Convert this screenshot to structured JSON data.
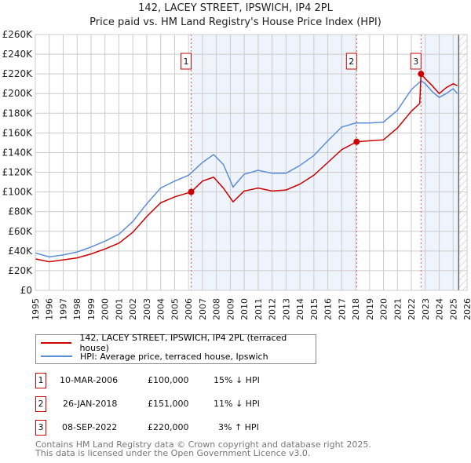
{
  "chart_data": {
    "type": "line",
    "title": "142, LACEY STREET, IPSWICH, IP4 2PL",
    "subtitle": "Price paid vs. HM Land Registry's House Price Index (HPI)",
    "xlim": [
      1995,
      2026
    ],
    "ylim": [
      0,
      260000
    ],
    "x_ticks": [
      "1995",
      "1996",
      "1997",
      "1998",
      "1999",
      "2000",
      "2001",
      "2002",
      "2003",
      "2004",
      "2005",
      "2006",
      "2007",
      "2008",
      "2009",
      "2010",
      "2011",
      "2012",
      "2013",
      "2014",
      "2015",
      "2016",
      "2017",
      "2018",
      "2019",
      "2020",
      "2021",
      "2022",
      "2023",
      "2024",
      "2025",
      "2026"
    ],
    "y_ticks": [
      "£0",
      "£20K",
      "£40K",
      "£60K",
      "£80K",
      "£100K",
      "£120K",
      "£140K",
      "£160K",
      "£180K",
      "£200K",
      "£220K",
      "£240K",
      "£260K"
    ],
    "grid": true,
    "series": [
      {
        "name": "142, LACEY STREET, IPSWICH, IP4 2PL (terraced house)",
        "color": "#cc0000",
        "x": [
          1995,
          1996,
          1997,
          1998,
          1999,
          2000,
          2001,
          2002,
          2003,
          2004,
          2005,
          2006.19,
          2007,
          2007.8,
          2008.5,
          2009.2,
          2010,
          2011,
          2012,
          2013,
          2014,
          2015,
          2016,
          2017,
          2018.07,
          2019,
          2020,
          2021,
          2022,
          2022.6,
          2022.69,
          2023,
          2023.5,
          2024,
          2024.5,
          2025,
          2025.3
        ],
        "y": [
          32000,
          29000,
          31000,
          33000,
          37000,
          42000,
          48000,
          59000,
          75000,
          89000,
          95000,
          100000,
          111000,
          115000,
          104000,
          90000,
          101000,
          104000,
          101000,
          102000,
          108000,
          117000,
          130000,
          143000,
          151000,
          152000,
          153000,
          165000,
          182000,
          190000,
          220000,
          215000,
          208000,
          200000,
          206000,
          210000,
          208000
        ]
      },
      {
        "name": "HPI: Average price, terraced house, Ipswich",
        "color": "#5b8ed6",
        "x": [
          1995,
          1996,
          1997,
          1998,
          1999,
          2000,
          2001,
          2002,
          2003,
          2004,
          2005,
          2006,
          2007,
          2007.8,
          2008.5,
          2009.2,
          2010,
          2011,
          2012,
          2013,
          2014,
          2015,
          2016,
          2017,
          2018,
          2019,
          2020,
          2021,
          2022,
          2022.7,
          2023,
          2023.5,
          2024,
          2024.5,
          2025,
          2025.3
        ],
        "y": [
          38000,
          34000,
          36000,
          39000,
          44000,
          50000,
          57000,
          70000,
          88000,
          104000,
          111000,
          117000,
          130000,
          138000,
          128000,
          105000,
          118000,
          122000,
          119000,
          119000,
          127000,
          137000,
          152000,
          166000,
          170000,
          170000,
          171000,
          183000,
          204000,
          213000,
          210000,
          202000,
          196000,
          200000,
          205000,
          200000
        ]
      }
    ],
    "sales": [
      {
        "label": "1",
        "x": 2006.19,
        "y": 100000
      },
      {
        "label": "2",
        "x": 2018.07,
        "y": 151000
      },
      {
        "label": "3",
        "x": 2022.69,
        "y": 220000
      }
    ],
    "shaded": [
      [
        2006.19,
        2018.07
      ],
      [
        2022.69,
        2025.4
      ]
    ],
    "hatched_from": 2025.4
  },
  "legend": {
    "red": "142, LACEY STREET, IPSWICH, IP4 2PL (terraced house)",
    "blue": "HPI: Average price, terraced house, Ipswich"
  },
  "table": [
    {
      "num": "1",
      "date": "10-MAR-2006",
      "price": "£100,000",
      "hpi": "15% ↓ HPI"
    },
    {
      "num": "2",
      "date": "26-JAN-2018",
      "price": "£151,000",
      "hpi": "11% ↓ HPI"
    },
    {
      "num": "3",
      "date": "08-SEP-2022",
      "price": "£220,000",
      "hpi": "3% ↑ HPI"
    }
  ],
  "footer": {
    "line1": "Contains HM Land Registry data © Crown copyright and database right 2025.",
    "line2": "This data is licensed under the Open Government Licence v3.0."
  }
}
